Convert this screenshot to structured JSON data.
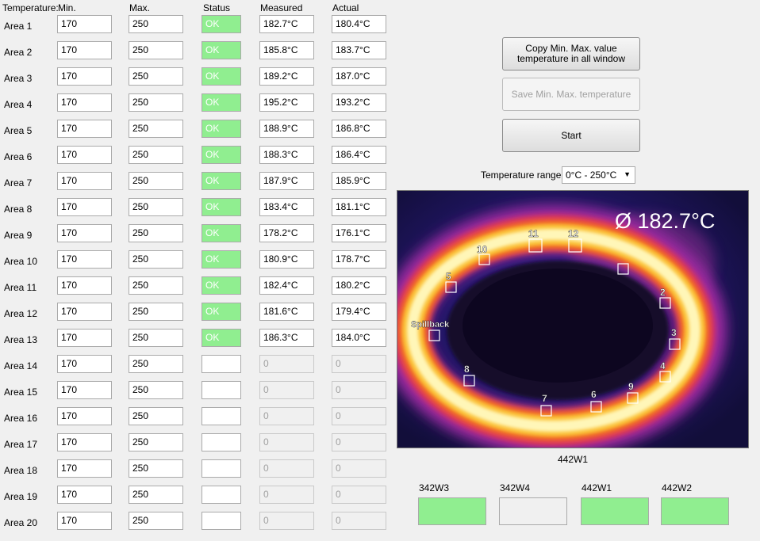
{
  "headers": {
    "temperature": "Temperature:",
    "min": "Min.",
    "max": "Max.",
    "status": "Status",
    "measured": "Measured",
    "actual": "Actual"
  },
  "areas": [
    {
      "label": "Area 1",
      "min": "170",
      "max": "250",
      "status": "OK",
      "measured": "182.7°C",
      "actual": "180.4°C"
    },
    {
      "label": "Area 2",
      "min": "170",
      "max": "250",
      "status": "OK",
      "measured": "185.8°C",
      "actual": "183.7°C"
    },
    {
      "label": "Area 3",
      "min": "170",
      "max": "250",
      "status": "OK",
      "measured": "189.2°C",
      "actual": "187.0°C"
    },
    {
      "label": "Area 4",
      "min": "170",
      "max": "250",
      "status": "OK",
      "measured": "195.2°C",
      "actual": "193.2°C"
    },
    {
      "label": "Area 5",
      "min": "170",
      "max": "250",
      "status": "OK",
      "measured": "188.9°C",
      "actual": "186.8°C"
    },
    {
      "label": "Area 6",
      "min": "170",
      "max": "250",
      "status": "OK",
      "measured": "188.3°C",
      "actual": "186.4°C"
    },
    {
      "label": "Area 7",
      "min": "170",
      "max": "250",
      "status": "OK",
      "measured": "187.9°C",
      "actual": "185.9°C"
    },
    {
      "label": "Area 8",
      "min": "170",
      "max": "250",
      "status": "OK",
      "measured": "183.4°C",
      "actual": "181.1°C"
    },
    {
      "label": "Area 9",
      "min": "170",
      "max": "250",
      "status": "OK",
      "measured": "178.2°C",
      "actual": "176.1°C"
    },
    {
      "label": "Area 10",
      "min": "170",
      "max": "250",
      "status": "OK",
      "measured": "180.9°C",
      "actual": "178.7°C"
    },
    {
      "label": "Area 11",
      "min": "170",
      "max": "250",
      "status": "OK",
      "measured": "182.4°C",
      "actual": "180.2°C"
    },
    {
      "label": "Area 12",
      "min": "170",
      "max": "250",
      "status": "OK",
      "measured": "181.6°C",
      "actual": "179.4°C"
    },
    {
      "label": "Area 13",
      "min": "170",
      "max": "250",
      "status": "OK",
      "measured": "186.3°C",
      "actual": "184.0°C"
    },
    {
      "label": "Area 14",
      "min": "170",
      "max": "250",
      "status": "",
      "measured": "0",
      "actual": "0"
    },
    {
      "label": "Area 15",
      "min": "170",
      "max": "250",
      "status": "",
      "measured": "0",
      "actual": "0"
    },
    {
      "label": "Area 16",
      "min": "170",
      "max": "250",
      "status": "",
      "measured": "0",
      "actual": "0"
    },
    {
      "label": "Area 17",
      "min": "170",
      "max": "250",
      "status": "",
      "measured": "0",
      "actual": "0"
    },
    {
      "label": "Area 18",
      "min": "170",
      "max": "250",
      "status": "",
      "measured": "0",
      "actual": "0"
    },
    {
      "label": "Area 19",
      "min": "170",
      "max": "250",
      "status": "",
      "measured": "0",
      "actual": "0"
    },
    {
      "label": "Area 20",
      "min": "170",
      "max": "250",
      "status": "",
      "measured": "0",
      "actual": "0"
    }
  ],
  "buttons": {
    "copy": "Copy Min. Max. value temperature in all window",
    "save": "Save Min. Max. temperature",
    "start": "Start"
  },
  "range": {
    "label": "Temperature range",
    "value": "0°C - 250°C"
  },
  "thermal_image": {
    "avg_text": "Ø 182.7°C",
    "caption": "442W1",
    "markers": [
      "11",
      "12",
      "10",
      "5",
      "2",
      "Spillback",
      "3",
      "4",
      "8",
      "7",
      "6",
      "9"
    ]
  },
  "stations": [
    {
      "label": "342W3",
      "state": "ok"
    },
    {
      "label": "342W4",
      "state": "idle"
    },
    {
      "label": "442W1",
      "state": "ok"
    },
    {
      "label": "442W2",
      "state": "ok"
    }
  ],
  "colors": {
    "ok_green": "#90ee90",
    "window_bg": "#f0f0f0"
  }
}
